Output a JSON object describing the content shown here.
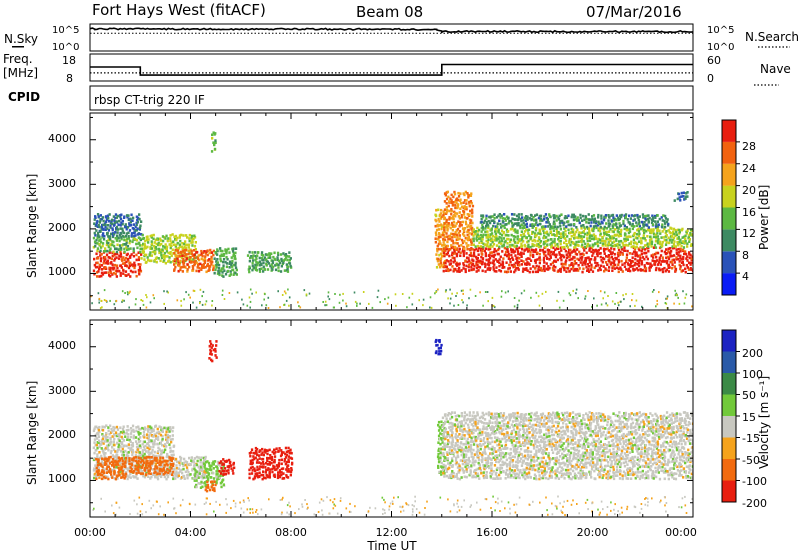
{
  "header": {
    "radar": "Fort Hays West (fitACF)",
    "beam": "Beam 08",
    "date": "07/Mar/2016"
  },
  "top_panels": {
    "nsky_label": "N.Sky",
    "nsky_ticks": [
      "10^5",
      "10^0"
    ],
    "nsearch_label": "N.Search",
    "nsearch_ticks": [
      "10^5",
      "10^0"
    ],
    "freq_label": "Freq.",
    "freq_unit": "[MHz]",
    "freq_ticks": [
      "18",
      "8"
    ],
    "nave_label": "Nave",
    "nave_ticks": [
      "60",
      "0"
    ],
    "cpid_label": "CPID",
    "cpid_text": "rbsp CT-trig 220 IF"
  },
  "x_axis": {
    "label": "Time UT",
    "ticks": [
      "00:00",
      "04:00",
      "08:00",
      "12:00",
      "16:00",
      "20:00",
      "00:00"
    ]
  },
  "y_axis": {
    "label": "Slant Range [km]",
    "ticks": [
      "1000",
      "2000",
      "3000",
      "4000"
    ]
  },
  "power_scale": {
    "label": "Power [dB]",
    "ticks": [
      "4",
      "8",
      "12",
      "16",
      "20",
      "24",
      "28"
    ],
    "colors": [
      "#0a1cf5",
      "#2a52b8",
      "#3d8a62",
      "#5cb842",
      "#c8d21e",
      "#f5a31c",
      "#f2620f",
      "#e81e0f"
    ]
  },
  "velocity_scale": {
    "label": "Velocity [m s⁻¹]",
    "ticks": [
      "200",
      "100",
      "50",
      "15",
      "-15",
      "-50",
      "-100",
      "-200"
    ],
    "colors": [
      "#1c23c2",
      "#2a5aa8",
      "#3b8a46",
      "#72c93a",
      "#c8c8c0",
      "#f5a31c",
      "#f26b0f",
      "#e81e0f"
    ]
  },
  "chart_data": {
    "type": "heatmap",
    "title": "Fort Hays West (fitACF)",
    "subtitle": "Beam 08   07/Mar/2016",
    "xlabel": "Time UT",
    "ylabel": "Slant Range [km]",
    "xlim": [
      0,
      24
    ],
    "ylim": [
      180,
      4600
    ],
    "grid": false,
    "time_series": {
      "nsky_log10": {
        "x_hours": [
          0,
          0.2,
          13.8,
          14.0,
          24
        ],
        "y": [
          4.1,
          4.1,
          4.0,
          3.6,
          3.6
        ]
      },
      "frequency_mhz": {
        "x_hours": [
          0,
          2,
          2.0001,
          14,
          14.0001,
          24
        ],
        "y": [
          13.2,
          13.2,
          10.2,
          10.2,
          14.1,
          14.1
        ]
      },
      "nave": {
        "x_hours": [
          0,
          24
        ],
        "y": [
          18,
          18
        ]
      }
    },
    "power": {
      "units": "dB",
      "scale": [
        0,
        32
      ],
      "regions": [
        {
          "t": [
            0.1,
            2.0
          ],
          "r": [
            900,
            1450
          ],
          "value": 29
        },
        {
          "t": [
            0.1,
            2.0
          ],
          "r": [
            1450,
            1800
          ],
          "value": 14
        },
        {
          "t": [
            0.1,
            2.0
          ],
          "r": [
            1800,
            2300
          ],
          "value": 8
        },
        {
          "t": [
            2.0,
            4.2
          ],
          "r": [
            1200,
            1850
          ],
          "value": 17
        },
        {
          "t": [
            3.3,
            4.9
          ],
          "r": [
            1000,
            1500
          ],
          "value": 26
        },
        {
          "t": [
            4.9,
            5.8
          ],
          "r": [
            900,
            1550
          ],
          "value": 13
        },
        {
          "t": [
            4.8,
            5.0
          ],
          "r": [
            3700,
            4150
          ],
          "value": 14
        },
        {
          "t": [
            6.2,
            8.0
          ],
          "r": [
            1000,
            1450
          ],
          "value": 12
        },
        {
          "t": [
            13.7,
            14.1
          ],
          "r": [
            1100,
            2400
          ],
          "value": 22
        },
        {
          "t": [
            14.0,
            24.0
          ],
          "r": [
            1000,
            1550
          ],
          "value": 30
        },
        {
          "t": [
            14.0,
            15.2
          ],
          "r": [
            1500,
            2800
          ],
          "value": 24
        },
        {
          "t": [
            15.2,
            24.0
          ],
          "r": [
            1550,
            2000
          ],
          "value": 16
        },
        {
          "t": [
            15.5,
            23.0
          ],
          "r": [
            2000,
            2300
          ],
          "value": 10
        },
        {
          "t": [
            23.2,
            23.8
          ],
          "r": [
            2600,
            2800
          ],
          "value": 9
        }
      ]
    },
    "velocity": {
      "units": "m s-1",
      "scale": [
        -250,
        250
      ],
      "regions": [
        {
          "t": [
            0.1,
            3.3
          ],
          "r": [
            1000,
            2200
          ],
          "value": 0
        },
        {
          "t": [
            0.2,
            1.4
          ],
          "r": [
            1000,
            1500
          ],
          "value": -70
        },
        {
          "t": [
            1.5,
            3.3
          ],
          "r": [
            1100,
            1500
          ],
          "value": -70
        },
        {
          "t": [
            3.3,
            4.6
          ],
          "r": [
            1000,
            1500
          ],
          "value": 0
        },
        {
          "t": [
            4.1,
            5.3
          ],
          "r": [
            800,
            1400
          ],
          "value": 25
        },
        {
          "t": [
            4.5,
            5.0
          ],
          "r": [
            700,
            950
          ],
          "value": -80
        },
        {
          "t": [
            5.1,
            5.7
          ],
          "r": [
            1100,
            1450
          ],
          "value": -210
        },
        {
          "t": [
            4.7,
            5.0
          ],
          "r": [
            3650,
            4100
          ],
          "value": -220
        },
        {
          "t": [
            6.3,
            8.0
          ],
          "r": [
            1000,
            1700
          ],
          "value": -220
        },
        {
          "t": [
            13.7,
            13.95
          ],
          "r": [
            3800,
            4150
          ],
          "value": 230
        },
        {
          "t": [
            13.8,
            14.1
          ],
          "r": [
            1100,
            2300
          ],
          "value": 30
        },
        {
          "t": [
            14.0,
            24.0
          ],
          "r": [
            1000,
            2500
          ],
          "value": 0
        }
      ]
    }
  }
}
